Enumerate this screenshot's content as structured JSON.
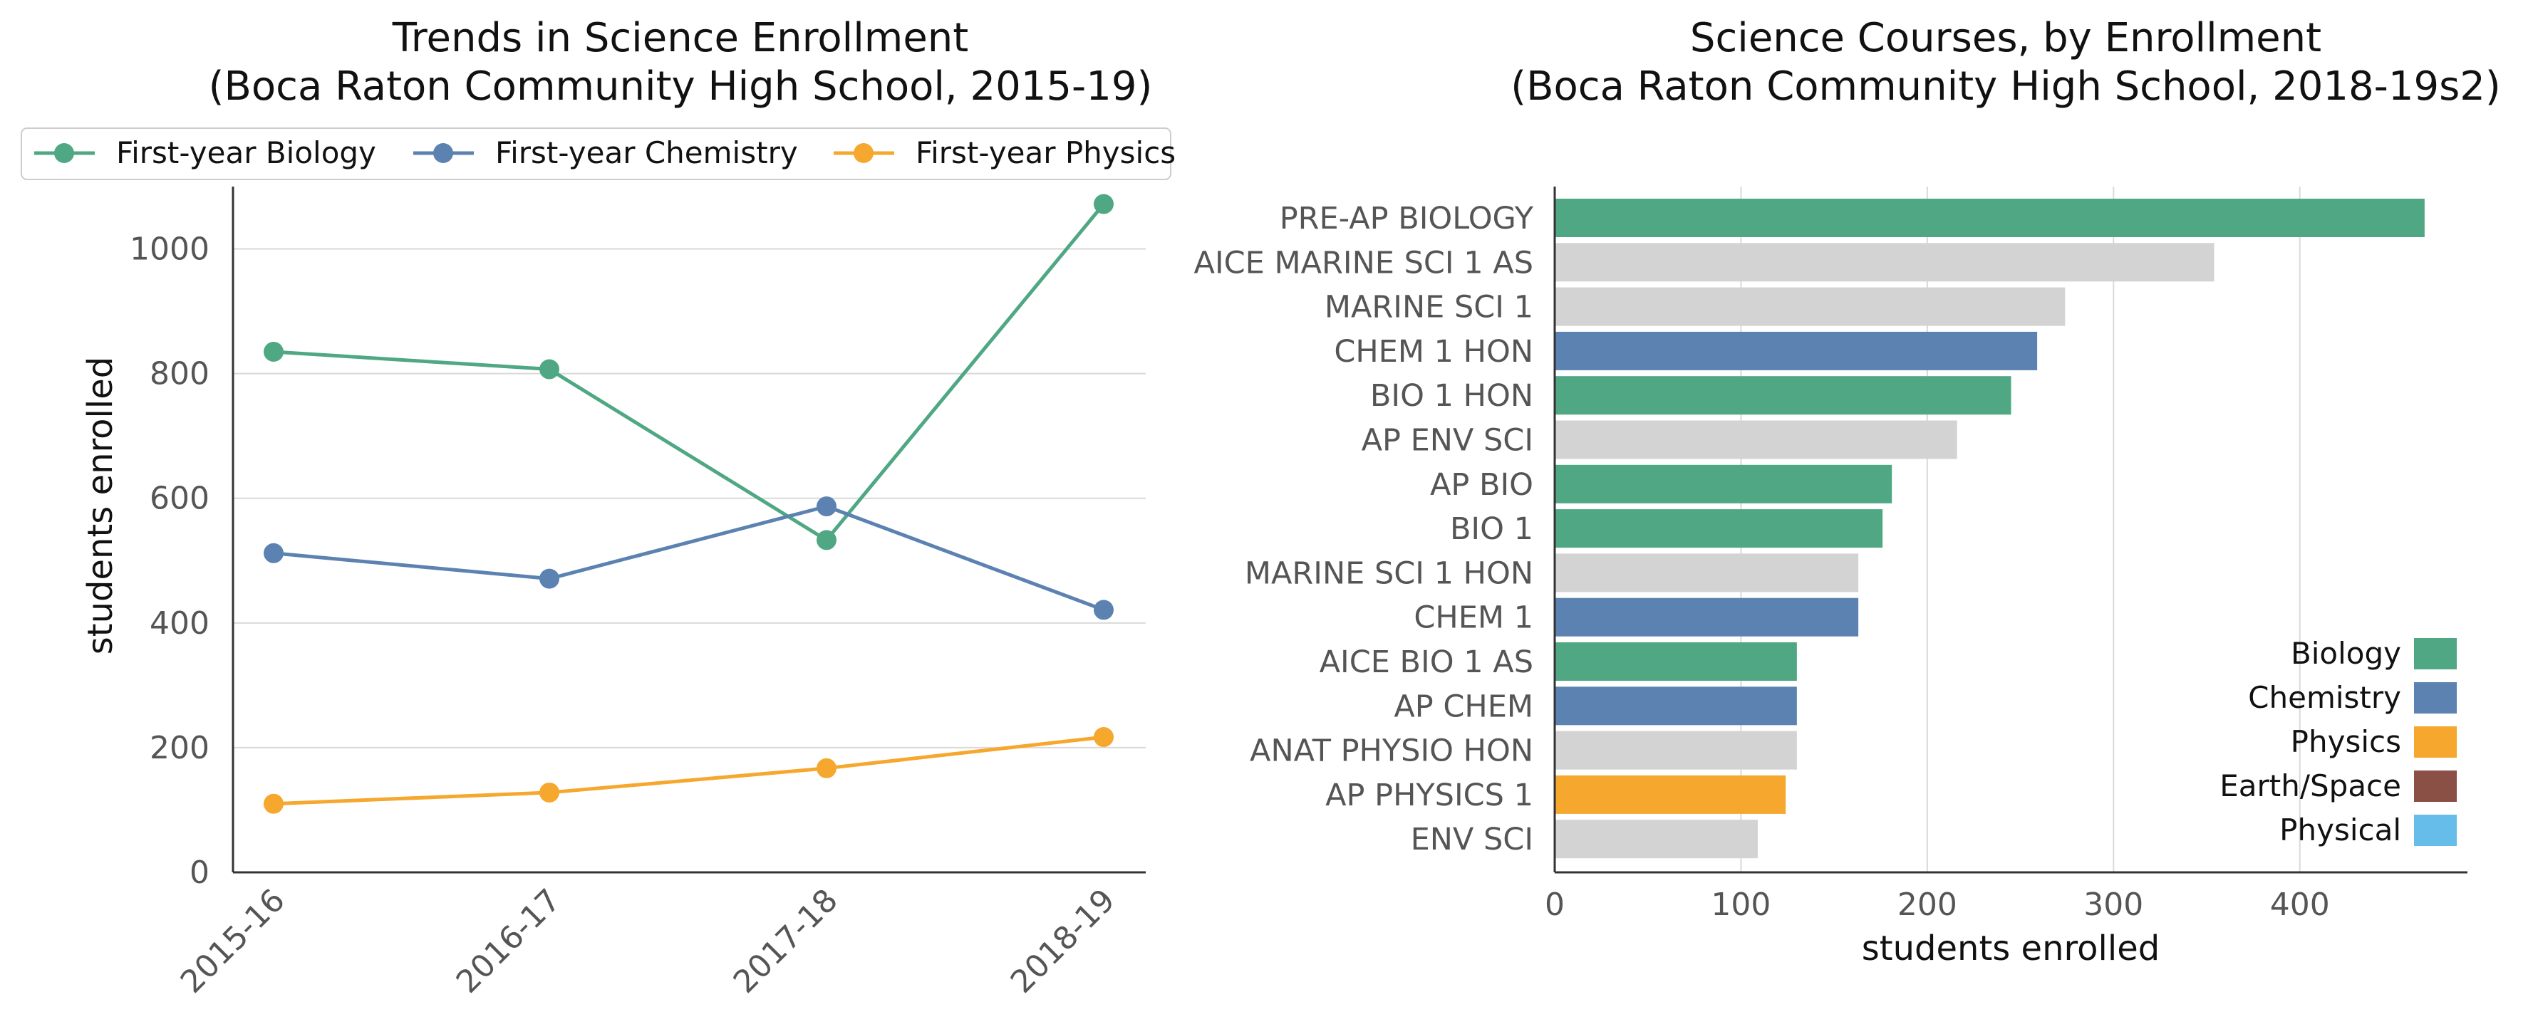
{
  "chart_data": [
    {
      "type": "line",
      "title": [
        "Trends in Science Enrollment",
        "(Boca Raton Community High School, 2015-19)"
      ],
      "xlabel": "",
      "ylabel": "students enrolled",
      "categories": [
        "2015-16",
        "2016-17",
        "2017-18",
        "2018-19"
      ],
      "ylim": [
        0,
        1100
      ],
      "yticks": [
        "0",
        "200",
        "400",
        "600",
        "800",
        "1000"
      ],
      "grid": "horizontal",
      "legend_position": "top",
      "series": [
        {
          "name": "First-year Biology",
          "color": "#4fa883",
          "values": [
            835,
            807,
            533,
            1072
          ]
        },
        {
          "name": "First-year Chemistry",
          "color": "#5b82b1",
          "values": [
            512,
            471,
            587,
            421
          ]
        },
        {
          "name": "First-year Physics",
          "color": "#f6a72e",
          "values": [
            110,
            128,
            167,
            217
          ]
        }
      ]
    },
    {
      "type": "bar",
      "orientation": "horizontal",
      "title": [
        "Science Courses, by Enrollment",
        "(Boca Raton Community High School, 2018-19s2)"
      ],
      "xlabel": "students enrolled",
      "ylabel": "",
      "xlim": [
        0,
        490
      ],
      "xticks": [
        "0",
        "100",
        "200",
        "300",
        "400"
      ],
      "grid": "vertical",
      "legend_position": "lower-right",
      "categories": [
        "PRE-AP BIOLOGY",
        "AICE MARINE SCI 1 AS",
        "MARINE SCI 1",
        "CHEM 1 HON",
        "BIO 1 HON",
        "AP ENV SCI",
        "AP BIO",
        "BIO 1",
        "MARINE SCI 1 HON",
        "CHEM 1",
        "AICE BIO 1 AS",
        "AP CHEM",
        "ANAT PHYSIO HON",
        "AP PHYSICS 1",
        "ENV SCI"
      ],
      "values": [
        467,
        354,
        274,
        259,
        245,
        216,
        181,
        176,
        163,
        163,
        130,
        130,
        130,
        124,
        109
      ],
      "groups": [
        "Biology",
        "Other",
        "Other",
        "Chemistry",
        "Biology",
        "Other",
        "Biology",
        "Biology",
        "Other",
        "Chemistry",
        "Biology",
        "Chemistry",
        "Other",
        "Physics",
        "Other"
      ],
      "group_colors": {
        "Biology": "#4fa883",
        "Chemistry": "#5b82b1",
        "Physics": "#f6a72e",
        "Earth/Space": "#8a4f45",
        "Physical": "#67bde9",
        "Other": "#d3d3d3"
      },
      "legend": [
        "Biology",
        "Chemistry",
        "Physics",
        "Earth/Space",
        "Physical"
      ]
    }
  ]
}
